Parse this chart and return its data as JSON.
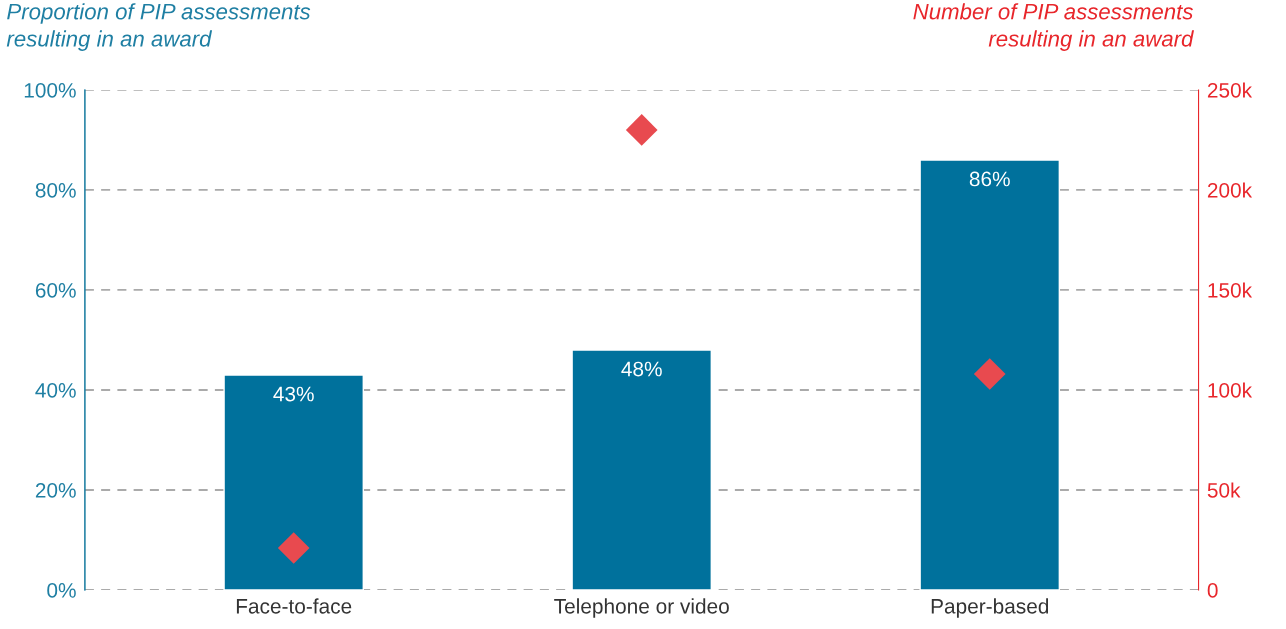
{
  "chart_data": {
    "type": "bar",
    "ylabel": "Proportion of PIP assessments\nresulting in an award",
    "y2label": "Number of PIP assessments\nresulting in an award",
    "categories": [
      "Face-to-face",
      "Telephone or video",
      "Paper-based"
    ],
    "series": [
      {
        "color": "#00719c",
        "values": [
          43,
          48,
          86
        ],
        "value_labels": [
          "43%",
          "48%",
          "86%"
        ]
      },
      {
        "type": "scatter",
        "axis": "y2",
        "color": "#e84a4f",
        "marker": "diamond",
        "values": [
          21000,
          230000,
          108000
        ]
      }
    ],
    "ylim": [
      0,
      100
    ],
    "yticks": [
      {
        "value": 0,
        "label": "0%"
      },
      {
        "value": 20,
        "label": "20%"
      },
      {
        "value": 40,
        "label": "40%"
      },
      {
        "value": 60,
        "label": "60%"
      },
      {
        "value": 80,
        "label": "80%"
      },
      {
        "value": 100,
        "label": "100%"
      }
    ],
    "y2lim": [
      0,
      250000
    ],
    "y2ticks": [
      {
        "value": 0,
        "label": "0"
      },
      {
        "value": 50000,
        "label": "50k"
      },
      {
        "value": 100000,
        "label": "100k"
      },
      {
        "value": 150000,
        "label": "150k"
      },
      {
        "value": 200000,
        "label": "200k"
      },
      {
        "value": 250000,
        "label": "250k"
      }
    ],
    "grid": "y",
    "legend": false
  }
}
